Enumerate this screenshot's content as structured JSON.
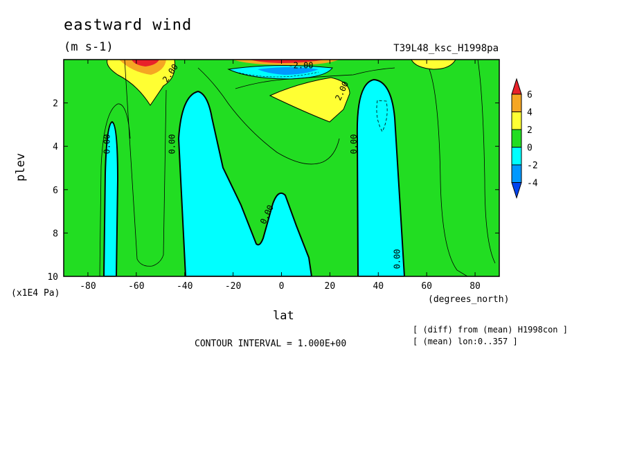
{
  "chart_data": {
    "type": "contour",
    "title": "eastward wind",
    "units": "(m s-1)",
    "experiment": "T39L48_ksc_H1998pa",
    "xlabel": "lat",
    "xunit": "(degrees_north)",
    "ylabel": "plev",
    "yunit": "(x1E4 Pa)",
    "xlim": [
      -90,
      90
    ],
    "ylim": [
      10,
      0
    ],
    "x_ticks": [
      -80,
      -60,
      -40,
      -20,
      0,
      20,
      40,
      60,
      80
    ],
    "y_ticks": [
      2,
      4,
      6,
      8,
      10
    ],
    "contour_interval": "CONTOUR INTERVAL = 1.000E+00",
    "contour_labels": [
      "0.00",
      "0.00",
      "0.00",
      "0.00",
      "0.00",
      "2.00",
      "2.00",
      "-2.00"
    ],
    "colorbar": {
      "levels": [
        6,
        4,
        2,
        0,
        -2,
        -4
      ],
      "colors": [
        "#e8222a",
        "#f5a623",
        "#ffff33",
        "#22dd22",
        "#00ffff",
        "#0099ff",
        "#0044ee"
      ]
    },
    "notes": [
      "[ (diff) from (mean) H1998con ]",
      "[ (mean) lon:0..357 ]"
    ]
  }
}
